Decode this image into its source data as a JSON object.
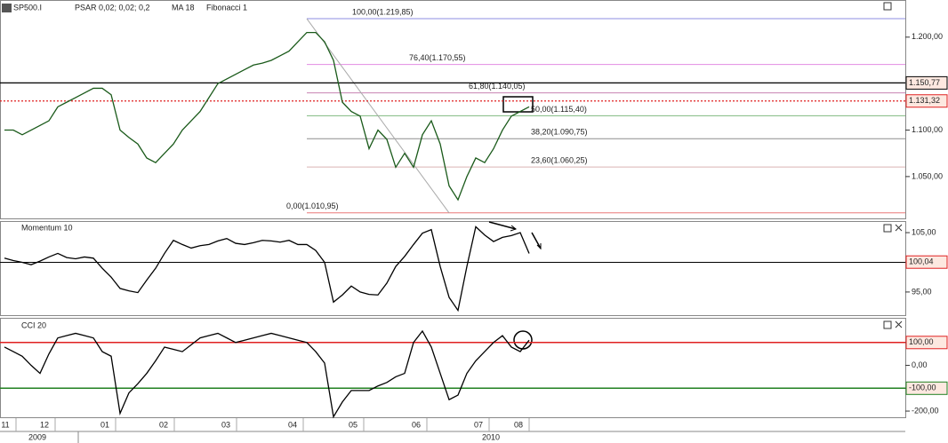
{
  "header": {
    "symbol": "SP500.I",
    "indicators": [
      "PSAR 0,02; 0,02; 0,2",
      "MA 18",
      "Fibonacci 1"
    ]
  },
  "main": {
    "ylim": [
      1005,
      1239
    ],
    "yticks": [
      {
        "value": 1200,
        "label": "1.200,00"
      },
      {
        "value": 1100,
        "label": "1.100,00"
      },
      {
        "value": 1050,
        "label": "1.050,00"
      }
    ],
    "price_levels": [
      {
        "value": 1150.77,
        "label": "1.150,77",
        "color": "#000000"
      },
      {
        "value": 1131.32,
        "label": "1.131,32",
        "color": "#e02020"
      }
    ],
    "fibonacci": [
      {
        "value": 1219.85,
        "label": "100,00(1.219,85)",
        "color": "#4040d0"
      },
      {
        "value": 1170.55,
        "label": "76,40(1.170,55)",
        "color": "#d040d0"
      },
      {
        "value": 1140.05,
        "label": "61,80(1.140,05)",
        "color": "#a03080"
      },
      {
        "value": 1115.4,
        "label": "50,00(1.115,40)",
        "color": "#2a8a2a"
      },
      {
        "value": 1090.75,
        "label": "38,20(1.090,75)",
        "color": "#444444"
      },
      {
        "value": 1060.25,
        "label": "23,60(1.060,25)",
        "color": "#c08080"
      },
      {
        "value": 1010.95,
        "label": "0,00(1.010,95)",
        "color": "#e02020"
      }
    ],
    "values": [
      1100,
      1100,
      1095,
      1100,
      1105,
      1110,
      1125,
      1130,
      1135,
      1140,
      1145,
      1145,
      1138,
      1100,
      1092,
      1085,
      1070,
      1065,
      1075,
      1085,
      1100,
      1110,
      1120,
      1135,
      1150,
      1155,
      1160,
      1165,
      1170,
      1172,
      1175,
      1180,
      1185,
      1195,
      1205,
      1205,
      1195,
      1175,
      1130,
      1120,
      1115,
      1080,
      1100,
      1090,
      1060,
      1075,
      1060,
      1095,
      1110,
      1085,
      1040,
      1025,
      1050,
      1070,
      1065,
      1080,
      1100,
      1115,
      1120,
      1125
    ]
  },
  "momentum": {
    "title": "Momentum 10",
    "ylim": [
      91.1,
      106.8
    ],
    "reference": 100,
    "yticks": [
      {
        "value": 105,
        "label": "105,00"
      },
      {
        "value": 100.04,
        "label": "100,04"
      },
      {
        "value": 95,
        "label": "95,00"
      }
    ],
    "values": [
      100.7,
      100.3,
      100,
      99.6,
      100.2,
      100.9,
      101.5,
      100.8,
      100.6,
      100.9,
      100.7,
      99,
      97.5,
      95.6,
      95.2,
      94.9,
      97,
      99,
      101.5,
      103.7,
      103,
      102.4,
      102.8,
      103,
      103.6,
      104,
      103.2,
      103,
      103.3,
      103.7,
      103.6,
      103.4,
      103.7,
      103,
      103,
      102,
      100,
      93.3,
      94.5,
      96,
      95,
      94.6,
      94.5,
      96.5,
      99.3,
      101,
      103,
      104.9,
      105.5,
      99.3,
      94.1,
      91.9,
      99.3,
      106,
      104.6,
      103.5,
      104.2,
      104.5,
      105,
      101.5
    ]
  },
  "cci": {
    "title": "CCI 20",
    "ylim": [
      -227,
      204
    ],
    "yticks": [
      {
        "value": 100,
        "label": "100,00"
      },
      {
        "value": 0,
        "label": "0,00"
      },
      {
        "value": -100,
        "label": "-100,00"
      },
      {
        "value": -200,
        "label": "-200,00"
      }
    ],
    "values": [
      80,
      60,
      40,
      0,
      -35,
      50,
      120,
      130,
      140,
      130,
      120,
      60,
      40,
      -210,
      -120,
      -80,
      -35,
      20,
      80,
      70,
      60,
      90,
      120,
      130,
      140,
      120,
      100,
      110,
      120,
      130,
      140,
      130,
      120,
      110,
      100,
      60,
      10,
      -225,
      -160,
      -110,
      -110,
      -110,
      -90,
      -75,
      -50,
      -35,
      100,
      150,
      80,
      -35,
      -150,
      -130,
      -35,
      20,
      60,
      100,
      130,
      80,
      60,
      110
    ]
  },
  "time_axis": {
    "months": [
      "11",
      "12",
      "01",
      "02",
      "03",
      "04",
      "05",
      "06",
      "07",
      "08"
    ],
    "years": [
      "2009",
      "2010"
    ]
  }
}
